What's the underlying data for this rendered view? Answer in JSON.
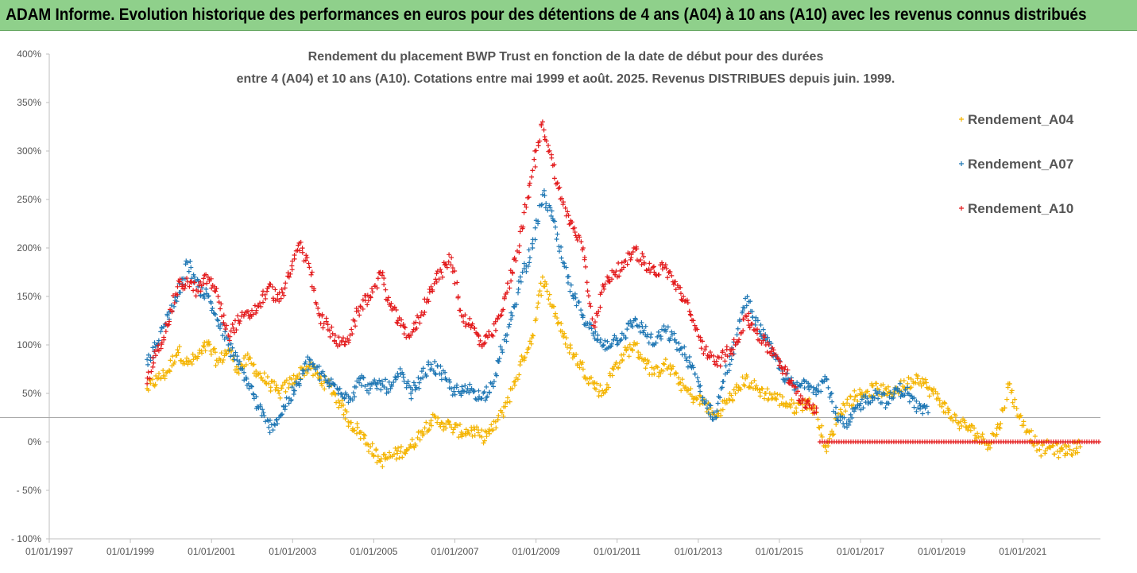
{
  "banner": {
    "title": "ADAM Informe. Evolution historique des performances en euros pour des détentions de 4 ans (A04) à 10 ans (A10) avec les revenus connus distribués",
    "bg_color": "#8fd08b"
  },
  "chart_data": {
    "type": "scatter",
    "title_line1": "Rendement du placement BWP Trust en fonction de la date de début pour des durées",
    "title_line2": "entre 4 (A04) et 10 ans (A10). Cotations entre mai 1999 et août. 2025. Revenus DISTRIBUES depuis juin. 1999.",
    "xlabel": "",
    "ylabel": "",
    "x_type": "date",
    "x_ticks": [
      "01/01/1997",
      "01/01/1999",
      "01/01/2001",
      "01/01/2003",
      "01/01/2005",
      "01/01/2007",
      "01/01/2009",
      "01/01/2011",
      "01/01/2013",
      "01/01/2015",
      "01/01/2017",
      "01/01/2019",
      "01/01/2021"
    ],
    "y_ticks": [
      "400%",
      "350%",
      "300%",
      "250%",
      "200%",
      "150%",
      "100%",
      "50%",
      "0%",
      "- 50%",
      "- 100%"
    ],
    "xlim": [
      "1997-01-01",
      "2022-12-01"
    ],
    "ylim": [
      -100,
      400
    ],
    "y_unit": "%",
    "reference_line_y": 25,
    "marker": "+",
    "legend_position": "right",
    "series": [
      {
        "name": "Rendement_A04",
        "color": "#f4b400",
        "points": [
          [
            "1999-06-01",
            55
          ],
          [
            "1999-09-01",
            65
          ],
          [
            "1999-12-01",
            72
          ],
          [
            "2000-03-01",
            95
          ],
          [
            "2000-06-01",
            80
          ],
          [
            "2000-09-01",
            88
          ],
          [
            "2000-12-01",
            100
          ],
          [
            "2001-03-01",
            82
          ],
          [
            "2001-06-01",
            95
          ],
          [
            "2001-09-01",
            75
          ],
          [
            "2001-12-01",
            85
          ],
          [
            "2002-03-01",
            70
          ],
          [
            "2002-06-01",
            60
          ],
          [
            "2002-09-01",
            50
          ],
          [
            "2002-12-01",
            60
          ],
          [
            "2003-03-01",
            70
          ],
          [
            "2003-06-01",
            78
          ],
          [
            "2003-09-01",
            65
          ],
          [
            "2003-12-01",
            58
          ],
          [
            "2004-03-01",
            40
          ],
          [
            "2004-06-01",
            20
          ],
          [
            "2004-09-01",
            10
          ],
          [
            "2004-12-01",
            -5
          ],
          [
            "2005-03-01",
            -20
          ],
          [
            "2005-06-01",
            -15
          ],
          [
            "2005-09-01",
            -10
          ],
          [
            "2005-12-01",
            -5
          ],
          [
            "2006-03-01",
            10
          ],
          [
            "2006-06-01",
            22
          ],
          [
            "2006-09-01",
            20
          ],
          [
            "2006-12-01",
            15
          ],
          [
            "2007-03-01",
            10
          ],
          [
            "2007-06-01",
            12
          ],
          [
            "2007-09-01",
            5
          ],
          [
            "2007-12-01",
            12
          ],
          [
            "2008-03-01",
            30
          ],
          [
            "2008-06-01",
            55
          ],
          [
            "2008-09-01",
            85
          ],
          [
            "2008-12-01",
            110
          ],
          [
            "2009-03-01",
            170
          ],
          [
            "2009-06-01",
            140
          ],
          [
            "2009-09-01",
            110
          ],
          [
            "2009-12-01",
            90
          ],
          [
            "2010-03-01",
            75
          ],
          [
            "2010-06-01",
            60
          ],
          [
            "2010-09-01",
            50
          ],
          [
            "2010-12-01",
            75
          ],
          [
            "2011-03-01",
            90
          ],
          [
            "2011-06-01",
            100
          ],
          [
            "2011-09-01",
            85
          ],
          [
            "2011-12-01",
            70
          ],
          [
            "2012-03-01",
            80
          ],
          [
            "2012-06-01",
            70
          ],
          [
            "2012-09-01",
            55
          ],
          [
            "2012-12-01",
            45
          ],
          [
            "2013-03-01",
            40
          ],
          [
            "2013-06-01",
            25
          ],
          [
            "2013-09-01",
            40
          ],
          [
            "2013-12-01",
            50
          ],
          [
            "2014-03-01",
            65
          ],
          [
            "2014-06-01",
            55
          ],
          [
            "2014-09-01",
            50
          ],
          [
            "2014-12-01",
            45
          ],
          [
            "2015-03-01",
            40
          ],
          [
            "2015-06-01",
            35
          ],
          [
            "2015-09-01",
            42
          ],
          [
            "2015-12-01",
            30
          ],
          [
            "2016-03-01",
            -10
          ],
          [
            "2016-06-01",
            25
          ],
          [
            "2016-09-01",
            40
          ],
          [
            "2016-12-01",
            48
          ],
          [
            "2017-03-01",
            52
          ],
          [
            "2017-06-01",
            55
          ],
          [
            "2017-09-01",
            50
          ],
          [
            "2017-12-01",
            55
          ],
          [
            "2018-03-01",
            60
          ],
          [
            "2018-06-01",
            68
          ],
          [
            "2018-09-01",
            55
          ],
          [
            "2018-12-01",
            45
          ],
          [
            "2019-03-01",
            30
          ],
          [
            "2019-06-01",
            20
          ],
          [
            "2019-09-01",
            15
          ],
          [
            "2019-12-01",
            5
          ],
          [
            "2020-03-01",
            -2
          ],
          [
            "2020-06-01",
            15
          ],
          [
            "2020-09-01",
            60
          ],
          [
            "2020-12-01",
            25
          ],
          [
            "2021-03-01",
            10
          ],
          [
            "2021-06-01",
            -8
          ],
          [
            "2021-09-01",
            -5
          ],
          [
            "2021-12-01",
            -10
          ],
          [
            "2022-03-01",
            -8
          ],
          [
            "2022-06-01",
            -5
          ]
        ]
      },
      {
        "name": "Rendement_A07",
        "color": "#1f77b4",
        "points": [
          [
            "1999-06-01",
            85
          ],
          [
            "1999-09-01",
            100
          ],
          [
            "1999-12-01",
            130
          ],
          [
            "2000-03-01",
            150
          ],
          [
            "2000-06-01",
            185
          ],
          [
            "2000-09-01",
            160
          ],
          [
            "2000-12-01",
            150
          ],
          [
            "2001-03-01",
            125
          ],
          [
            "2001-06-01",
            100
          ],
          [
            "2001-09-01",
            80
          ],
          [
            "2001-12-01",
            60
          ],
          [
            "2002-03-01",
            35
          ],
          [
            "2002-06-01",
            15
          ],
          [
            "2002-09-01",
            25
          ],
          [
            "2002-12-01",
            45
          ],
          [
            "2003-03-01",
            60
          ],
          [
            "2003-06-01",
            85
          ],
          [
            "2003-09-01",
            70
          ],
          [
            "2003-12-01",
            60
          ],
          [
            "2004-03-01",
            55
          ],
          [
            "2004-06-01",
            45
          ],
          [
            "2004-09-01",
            65
          ],
          [
            "2004-12-01",
            55
          ],
          [
            "2005-03-01",
            60
          ],
          [
            "2005-06-01",
            55
          ],
          [
            "2005-09-01",
            70
          ],
          [
            "2005-12-01",
            50
          ],
          [
            "2006-03-01",
            65
          ],
          [
            "2006-06-01",
            80
          ],
          [
            "2006-09-01",
            70
          ],
          [
            "2006-12-01",
            55
          ],
          [
            "2007-03-01",
            50
          ],
          [
            "2007-06-01",
            55
          ],
          [
            "2007-09-01",
            45
          ],
          [
            "2007-12-01",
            60
          ],
          [
            "2008-03-01",
            95
          ],
          [
            "2008-06-01",
            130
          ],
          [
            "2008-09-01",
            175
          ],
          [
            "2008-12-01",
            200
          ],
          [
            "2009-03-01",
            255
          ],
          [
            "2009-06-01",
            230
          ],
          [
            "2009-09-01",
            185
          ],
          [
            "2009-12-01",
            150
          ],
          [
            "2010-03-01",
            130
          ],
          [
            "2010-06-01",
            110
          ],
          [
            "2010-09-01",
            100
          ],
          [
            "2010-12-01",
            105
          ],
          [
            "2011-03-01",
            110
          ],
          [
            "2011-06-01",
            125
          ],
          [
            "2011-09-01",
            115
          ],
          [
            "2011-12-01",
            100
          ],
          [
            "2012-03-01",
            115
          ],
          [
            "2012-06-01",
            105
          ],
          [
            "2012-09-01",
            90
          ],
          [
            "2012-12-01",
            70
          ],
          [
            "2013-03-01",
            40
          ],
          [
            "2013-06-01",
            25
          ],
          [
            "2013-09-01",
            70
          ],
          [
            "2013-12-01",
            100
          ],
          [
            "2014-03-01",
            148
          ],
          [
            "2014-06-01",
            125
          ],
          [
            "2014-09-01",
            105
          ],
          [
            "2014-12-01",
            85
          ],
          [
            "2015-03-01",
            65
          ],
          [
            "2015-06-01",
            55
          ],
          [
            "2015-09-01",
            62
          ],
          [
            "2015-12-01",
            55
          ],
          [
            "2016-03-01",
            65
          ],
          [
            "2016-06-01",
            25
          ],
          [
            "2016-09-01",
            15
          ],
          [
            "2016-12-01",
            35
          ],
          [
            "2017-03-01",
            45
          ],
          [
            "2017-06-01",
            50
          ],
          [
            "2017-09-01",
            40
          ],
          [
            "2017-12-01",
            55
          ],
          [
            "2018-03-01",
            50
          ],
          [
            "2018-06-01",
            35
          ],
          [
            "2018-09-01",
            30
          ]
        ]
      },
      {
        "name": "Rendement_A10",
        "color": "#e31a1c",
        "points": [
          [
            "1999-06-01",
            60
          ],
          [
            "1999-09-01",
            95
          ],
          [
            "1999-12-01",
            120
          ],
          [
            "2000-03-01",
            160
          ],
          [
            "2000-06-01",
            165
          ],
          [
            "2000-09-01",
            155
          ],
          [
            "2000-12-01",
            170
          ],
          [
            "2001-03-01",
            150
          ],
          [
            "2001-06-01",
            110
          ],
          [
            "2001-09-01",
            125
          ],
          [
            "2001-12-01",
            130
          ],
          [
            "2002-03-01",
            140
          ],
          [
            "2002-06-01",
            160
          ],
          [
            "2002-09-01",
            145
          ],
          [
            "2002-12-01",
            170
          ],
          [
            "2003-03-01",
            205
          ],
          [
            "2003-06-01",
            180
          ],
          [
            "2003-09-01",
            130
          ],
          [
            "2003-12-01",
            115
          ],
          [
            "2004-03-01",
            100
          ],
          [
            "2004-06-01",
            110
          ],
          [
            "2004-09-01",
            140
          ],
          [
            "2004-12-01",
            150
          ],
          [
            "2005-03-01",
            175
          ],
          [
            "2005-06-01",
            140
          ],
          [
            "2005-09-01",
            120
          ],
          [
            "2005-12-01",
            110
          ],
          [
            "2006-03-01",
            130
          ],
          [
            "2006-06-01",
            160
          ],
          [
            "2006-09-01",
            175
          ],
          [
            "2006-12-01",
            190
          ],
          [
            "2007-03-01",
            130
          ],
          [
            "2007-06-01",
            120
          ],
          [
            "2007-09-01",
            100
          ],
          [
            "2007-12-01",
            110
          ],
          [
            "2008-03-01",
            135
          ],
          [
            "2008-06-01",
            175
          ],
          [
            "2008-09-01",
            220
          ],
          [
            "2008-12-01",
            280
          ],
          [
            "2009-03-01",
            330
          ],
          [
            "2009-06-01",
            285
          ],
          [
            "2009-09-01",
            245
          ],
          [
            "2009-12-01",
            220
          ],
          [
            "2010-03-01",
            200
          ],
          [
            "2010-06-01",
            120
          ],
          [
            "2010-09-01",
            160
          ],
          [
            "2010-12-01",
            175
          ],
          [
            "2011-03-01",
            180
          ],
          [
            "2011-06-01",
            200
          ],
          [
            "2011-09-01",
            185
          ],
          [
            "2011-12-01",
            175
          ],
          [
            "2012-03-01",
            180
          ],
          [
            "2012-06-01",
            165
          ],
          [
            "2012-09-01",
            145
          ],
          [
            "2012-12-01",
            120
          ],
          [
            "2013-03-01",
            95
          ],
          [
            "2013-06-01",
            80
          ],
          [
            "2013-09-01",
            90
          ],
          [
            "2013-12-01",
            100
          ],
          [
            "2014-03-01",
            130
          ],
          [
            "2014-06-01",
            115
          ],
          [
            "2014-09-01",
            100
          ],
          [
            "2014-12-01",
            90
          ],
          [
            "2015-03-01",
            70
          ],
          [
            "2015-06-01",
            50
          ],
          [
            "2015-09-01",
            40
          ],
          [
            "2015-12-01",
            35
          ]
        ]
      }
    ]
  },
  "zero_band": {
    "series": "Rendement_A10",
    "from": "2016-01-01",
    "to": "2022-12-01",
    "y": 0
  }
}
